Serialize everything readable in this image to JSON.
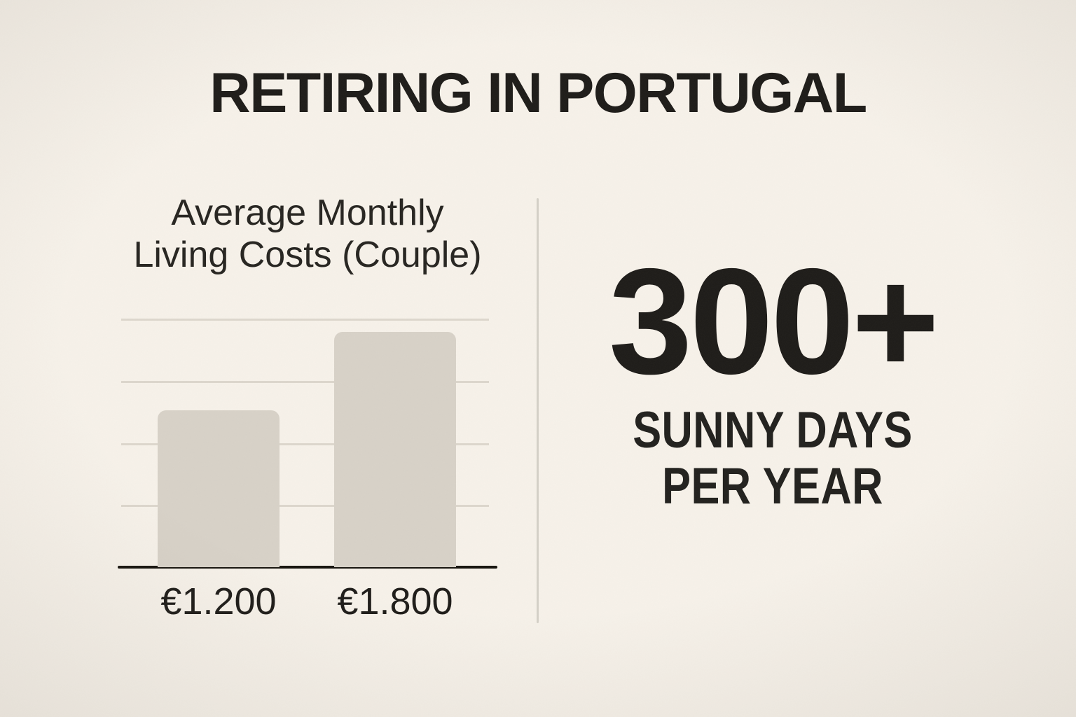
{
  "page": {
    "title": "RETIRING IN PORTUGAL"
  },
  "chart": {
    "title_lines": [
      "Average Monthly",
      "Living Costs (Couple)"
    ]
  },
  "chart_data": {
    "type": "bar",
    "title": "Average Monthly Living Costs (Couple)",
    "categories": [
      "€1.200",
      "€1.800"
    ],
    "values": [
      1200,
      1800
    ],
    "xlabel": "",
    "ylabel": "",
    "ylim": [
      0,
      1900
    ],
    "grid": true,
    "gridline_count": 4,
    "legend": false,
    "bar_color": "#d8d2c8",
    "category_label_position": "below-axis"
  },
  "stat": {
    "value": "300+",
    "label_lines": [
      "SUNNY DAYS",
      "PER YEAR"
    ]
  },
  "colors": {
    "background": "#f7f2ea",
    "text": "#1d1b18",
    "bar_fill": "#d8d2c8",
    "gridline": "#ddd7cd",
    "axis_line": "#16130d",
    "divider": "#d5d1c8"
  }
}
